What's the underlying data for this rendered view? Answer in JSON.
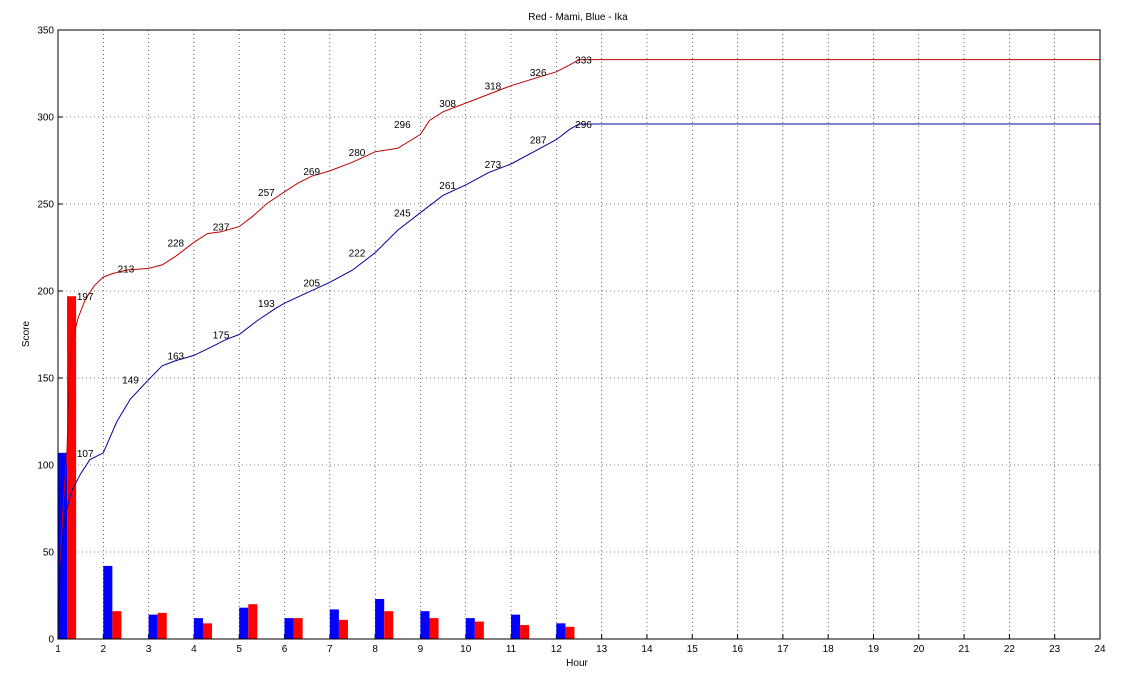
{
  "chart_data": {
    "type": "line",
    "title": "Red - Mami, Blue - Ika",
    "xlabel": "Hour",
    "ylabel": "Score",
    "xlim": [
      1,
      24
    ],
    "ylim": [
      0,
      350
    ],
    "grid": true,
    "xticks": [
      "1",
      "2",
      "3",
      "4",
      "5",
      "6",
      "7",
      "8",
      "9",
      "10",
      "11",
      "12",
      "13",
      "14",
      "15",
      "16",
      "17",
      "18",
      "19",
      "20",
      "21",
      "22",
      "23",
      "24"
    ],
    "yticks": [
      "0",
      "50",
      "100",
      "150",
      "200",
      "250",
      "300",
      "350"
    ],
    "colors": {
      "red": "#c00000",
      "blue": "#000099",
      "bar_red": "#ff0000",
      "bar_blue": "#0000ff",
      "grid": "#000000"
    },
    "series": [
      {
        "color": "red",
        "line": [
          [
            1,
            0
          ],
          [
            1.05,
            40
          ],
          [
            1.1,
            70
          ],
          [
            1.2,
            110
          ],
          [
            1.25,
            150
          ],
          [
            1.3,
            170
          ],
          [
            1.45,
            185
          ],
          [
            1.6,
            195
          ],
          [
            1.8,
            203
          ],
          [
            2.0,
            208
          ],
          [
            2.2,
            210
          ],
          [
            2.5,
            212
          ],
          [
            3.0,
            213
          ],
          [
            3.3,
            215
          ],
          [
            3.6,
            220
          ],
          [
            4.0,
            228
          ],
          [
            4.3,
            233
          ],
          [
            4.6,
            234
          ],
          [
            5.0,
            237
          ],
          [
            5.3,
            243
          ],
          [
            5.6,
            250
          ],
          [
            6.0,
            257
          ],
          [
            6.3,
            262
          ],
          [
            6.6,
            266
          ],
          [
            7.0,
            269
          ],
          [
            7.5,
            274
          ],
          [
            8.0,
            280
          ],
          [
            8.5,
            282
          ],
          [
            9.0,
            290
          ],
          [
            9.2,
            298
          ],
          [
            9.5,
            303
          ],
          [
            10.0,
            308
          ],
          [
            10.5,
            313
          ],
          [
            11.0,
            318
          ],
          [
            11.5,
            322
          ],
          [
            12.0,
            326
          ],
          [
            12.3,
            330
          ],
          [
            12.5,
            333
          ],
          [
            24,
            333
          ]
        ],
        "labels": [
          {
            "x": 1.6,
            "y": 197,
            "text": "197"
          },
          {
            "x": 2.5,
            "y": 213,
            "text": "213"
          },
          {
            "x": 3.6,
            "y": 228,
            "text": "228"
          },
          {
            "x": 4.6,
            "y": 237,
            "text": "237"
          },
          {
            "x": 5.6,
            "y": 257,
            "text": "257"
          },
          {
            "x": 6.6,
            "y": 269,
            "text": "269"
          },
          {
            "x": 7.6,
            "y": 280,
            "text": "280"
          },
          {
            "x": 8.6,
            "y": 296,
            "text": "296"
          },
          {
            "x": 9.6,
            "y": 308,
            "text": "308"
          },
          {
            "x": 10.6,
            "y": 318,
            "text": "318"
          },
          {
            "x": 11.6,
            "y": 326,
            "text": "326"
          },
          {
            "x": 12.6,
            "y": 333,
            "text": "333"
          }
        ],
        "bars": [
          197,
          16,
          15,
          9,
          20,
          12,
          11,
          16,
          12,
          10,
          8,
          7,
          0,
          0,
          0,
          0,
          0,
          0,
          0,
          0,
          0,
          0,
          0,
          0
        ]
      },
      {
        "color": "blue",
        "line": [
          [
            1,
            0
          ],
          [
            1.05,
            40
          ],
          [
            1.15,
            70
          ],
          [
            1.3,
            85
          ],
          [
            1.5,
            95
          ],
          [
            1.7,
            103
          ],
          [
            2.0,
            107
          ],
          [
            2.3,
            125
          ],
          [
            2.6,
            138
          ],
          [
            3.0,
            149
          ],
          [
            3.3,
            157
          ],
          [
            3.6,
            160
          ],
          [
            4.0,
            163
          ],
          [
            4.4,
            168
          ],
          [
            4.7,
            172
          ],
          [
            5.0,
            175
          ],
          [
            5.4,
            183
          ],
          [
            5.8,
            190
          ],
          [
            6.0,
            193
          ],
          [
            6.5,
            199
          ],
          [
            7.0,
            205
          ],
          [
            7.5,
            212
          ],
          [
            8.0,
            222
          ],
          [
            8.5,
            235
          ],
          [
            9.0,
            245
          ],
          [
            9.5,
            255
          ],
          [
            10.0,
            261
          ],
          [
            10.5,
            268
          ],
          [
            11.0,
            273
          ],
          [
            11.5,
            280
          ],
          [
            12.0,
            287
          ],
          [
            12.3,
            293
          ],
          [
            12.5,
            296
          ],
          [
            24,
            296
          ]
        ],
        "labels": [
          {
            "x": 1.6,
            "y": 107,
            "text": "107"
          },
          {
            "x": 2.6,
            "y": 149,
            "text": "149"
          },
          {
            "x": 3.6,
            "y": 163,
            "text": "163"
          },
          {
            "x": 4.6,
            "y": 175,
            "text": "175"
          },
          {
            "x": 5.6,
            "y": 193,
            "text": "193"
          },
          {
            "x": 6.6,
            "y": 205,
            "text": "205"
          },
          {
            "x": 7.6,
            "y": 222,
            "text": "222"
          },
          {
            "x": 8.6,
            "y": 245,
            "text": "245"
          },
          {
            "x": 9.6,
            "y": 261,
            "text": "261"
          },
          {
            "x": 10.6,
            "y": 273,
            "text": "273"
          },
          {
            "x": 11.6,
            "y": 287,
            "text": "287"
          },
          {
            "x": 12.6,
            "y": 296,
            "text": "296"
          }
        ],
        "bars": [
          107,
          42,
          14,
          12,
          18,
          12,
          17,
          23,
          16,
          12,
          14,
          9,
          0,
          0,
          0,
          0,
          0,
          0,
          0,
          0,
          0,
          0,
          0,
          0
        ]
      }
    ]
  }
}
